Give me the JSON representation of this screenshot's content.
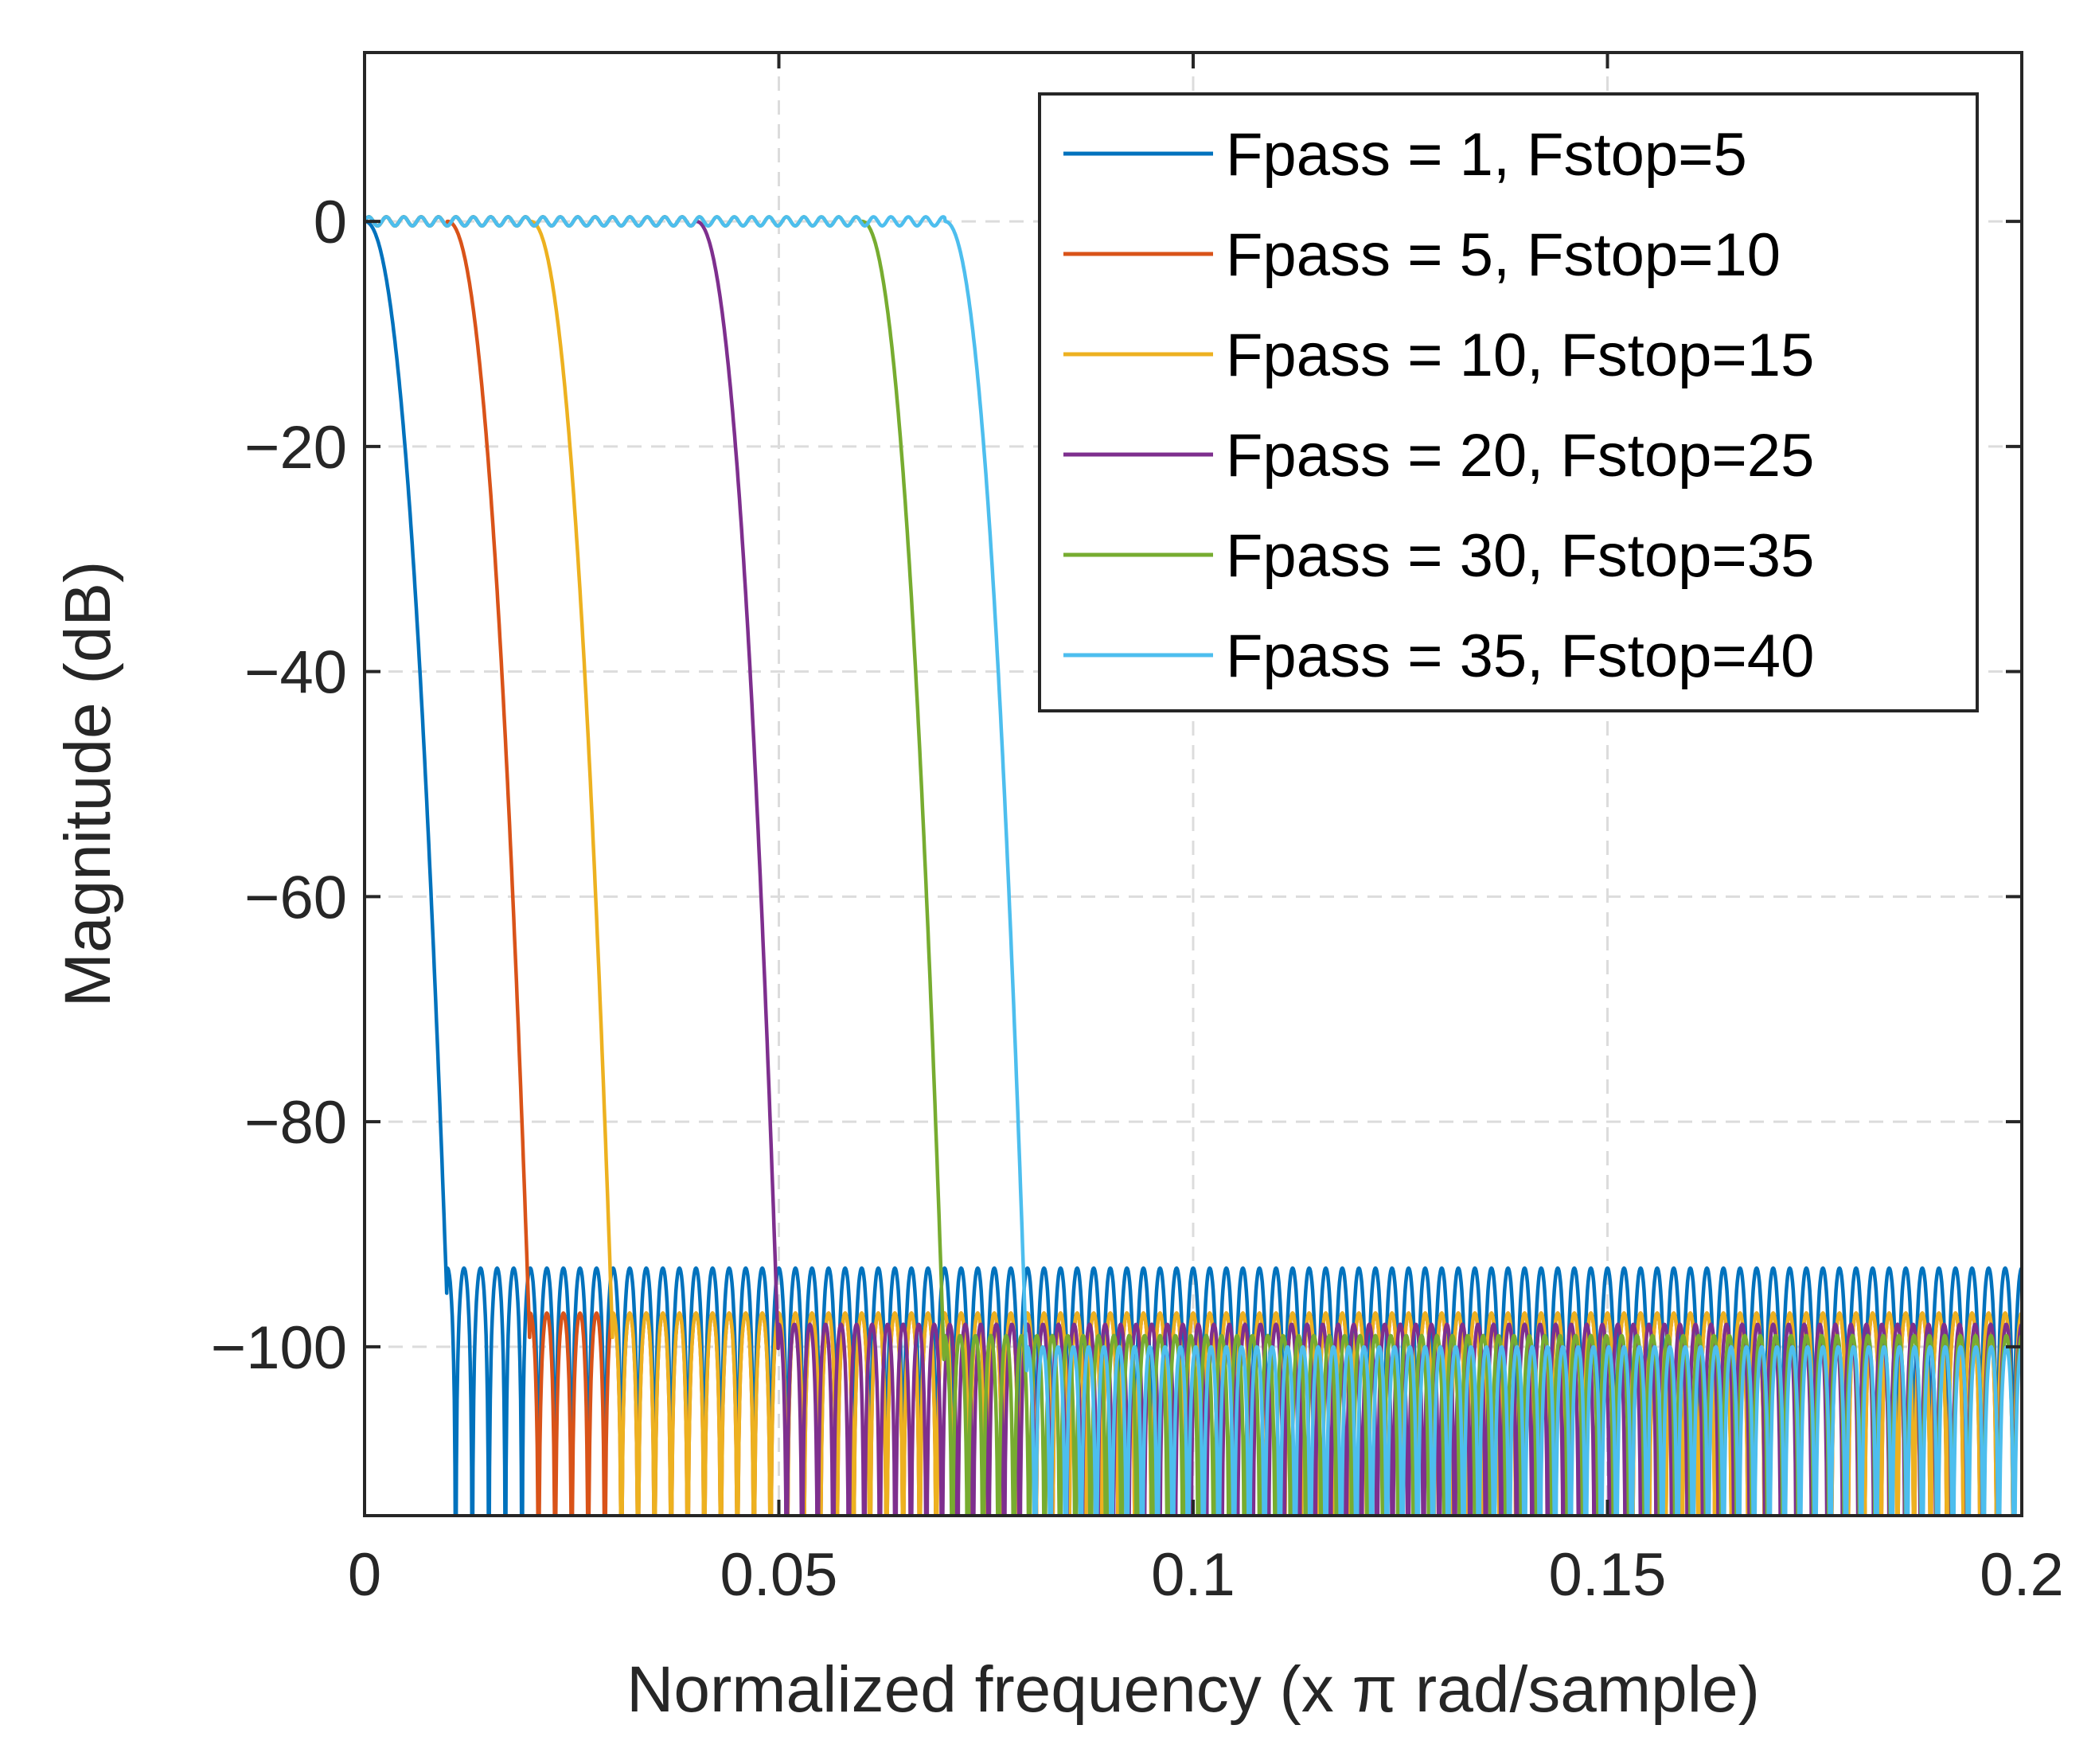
{
  "chart_data": {
    "type": "line",
    "title": "",
    "xlabel": "Normalized frequency (x π rad/sample)",
    "ylabel": "Magnitude (dB)",
    "xlim": [
      0,
      0.2
    ],
    "ylim": [
      -115,
      15
    ],
    "xticks": [
      0,
      0.05,
      0.1,
      0.15,
      0.2
    ],
    "xtick_labels": [
      "0",
      "0.05",
      "0.1",
      "0.15",
      "0.2"
    ],
    "yticks": [
      0,
      -20,
      -40,
      -60,
      -80,
      -100
    ],
    "ytick_labels": [
      "0",
      "−20",
      "−40",
      "−60",
      "−80",
      "−100"
    ],
    "grid": true,
    "legend_position": "top-right",
    "series": [
      {
        "name": "Fpass = 1, Fstop=5",
        "color": "#0072BD",
        "passband_edge": 0.0,
        "stopband_edge": 0.01,
        "stopband_level_db": -93,
        "lobes": 95
      },
      {
        "name": "Fpass = 5, Fstop=10",
        "color": "#D95319",
        "passband_edge": 0.01,
        "stopband_edge": 0.02,
        "stopband_level_db": -97,
        "lobes": 90
      },
      {
        "name": "Fpass = 10, Fstop=15",
        "color": "#EDB120",
        "passband_edge": 0.02,
        "stopband_edge": 0.03,
        "stopband_level_db": -97,
        "lobes": 85
      },
      {
        "name": "Fpass = 20, Fstop=25",
        "color": "#7E2F8E",
        "passband_edge": 0.04,
        "stopband_edge": 0.05,
        "stopband_level_db": -98,
        "lobes": 80
      },
      {
        "name": "Fpass = 30, Fstop=35",
        "color": "#77AC30",
        "passband_edge": 0.06,
        "stopband_edge": 0.07,
        "stopband_level_db": -99,
        "lobes": 70
      },
      {
        "name": "Fpass = 35, Fstop=40",
        "color": "#4DBEEE",
        "passband_edge": 0.07,
        "stopband_edge": 0.08,
        "stopband_level_db": -100,
        "lobes": 65
      }
    ]
  }
}
